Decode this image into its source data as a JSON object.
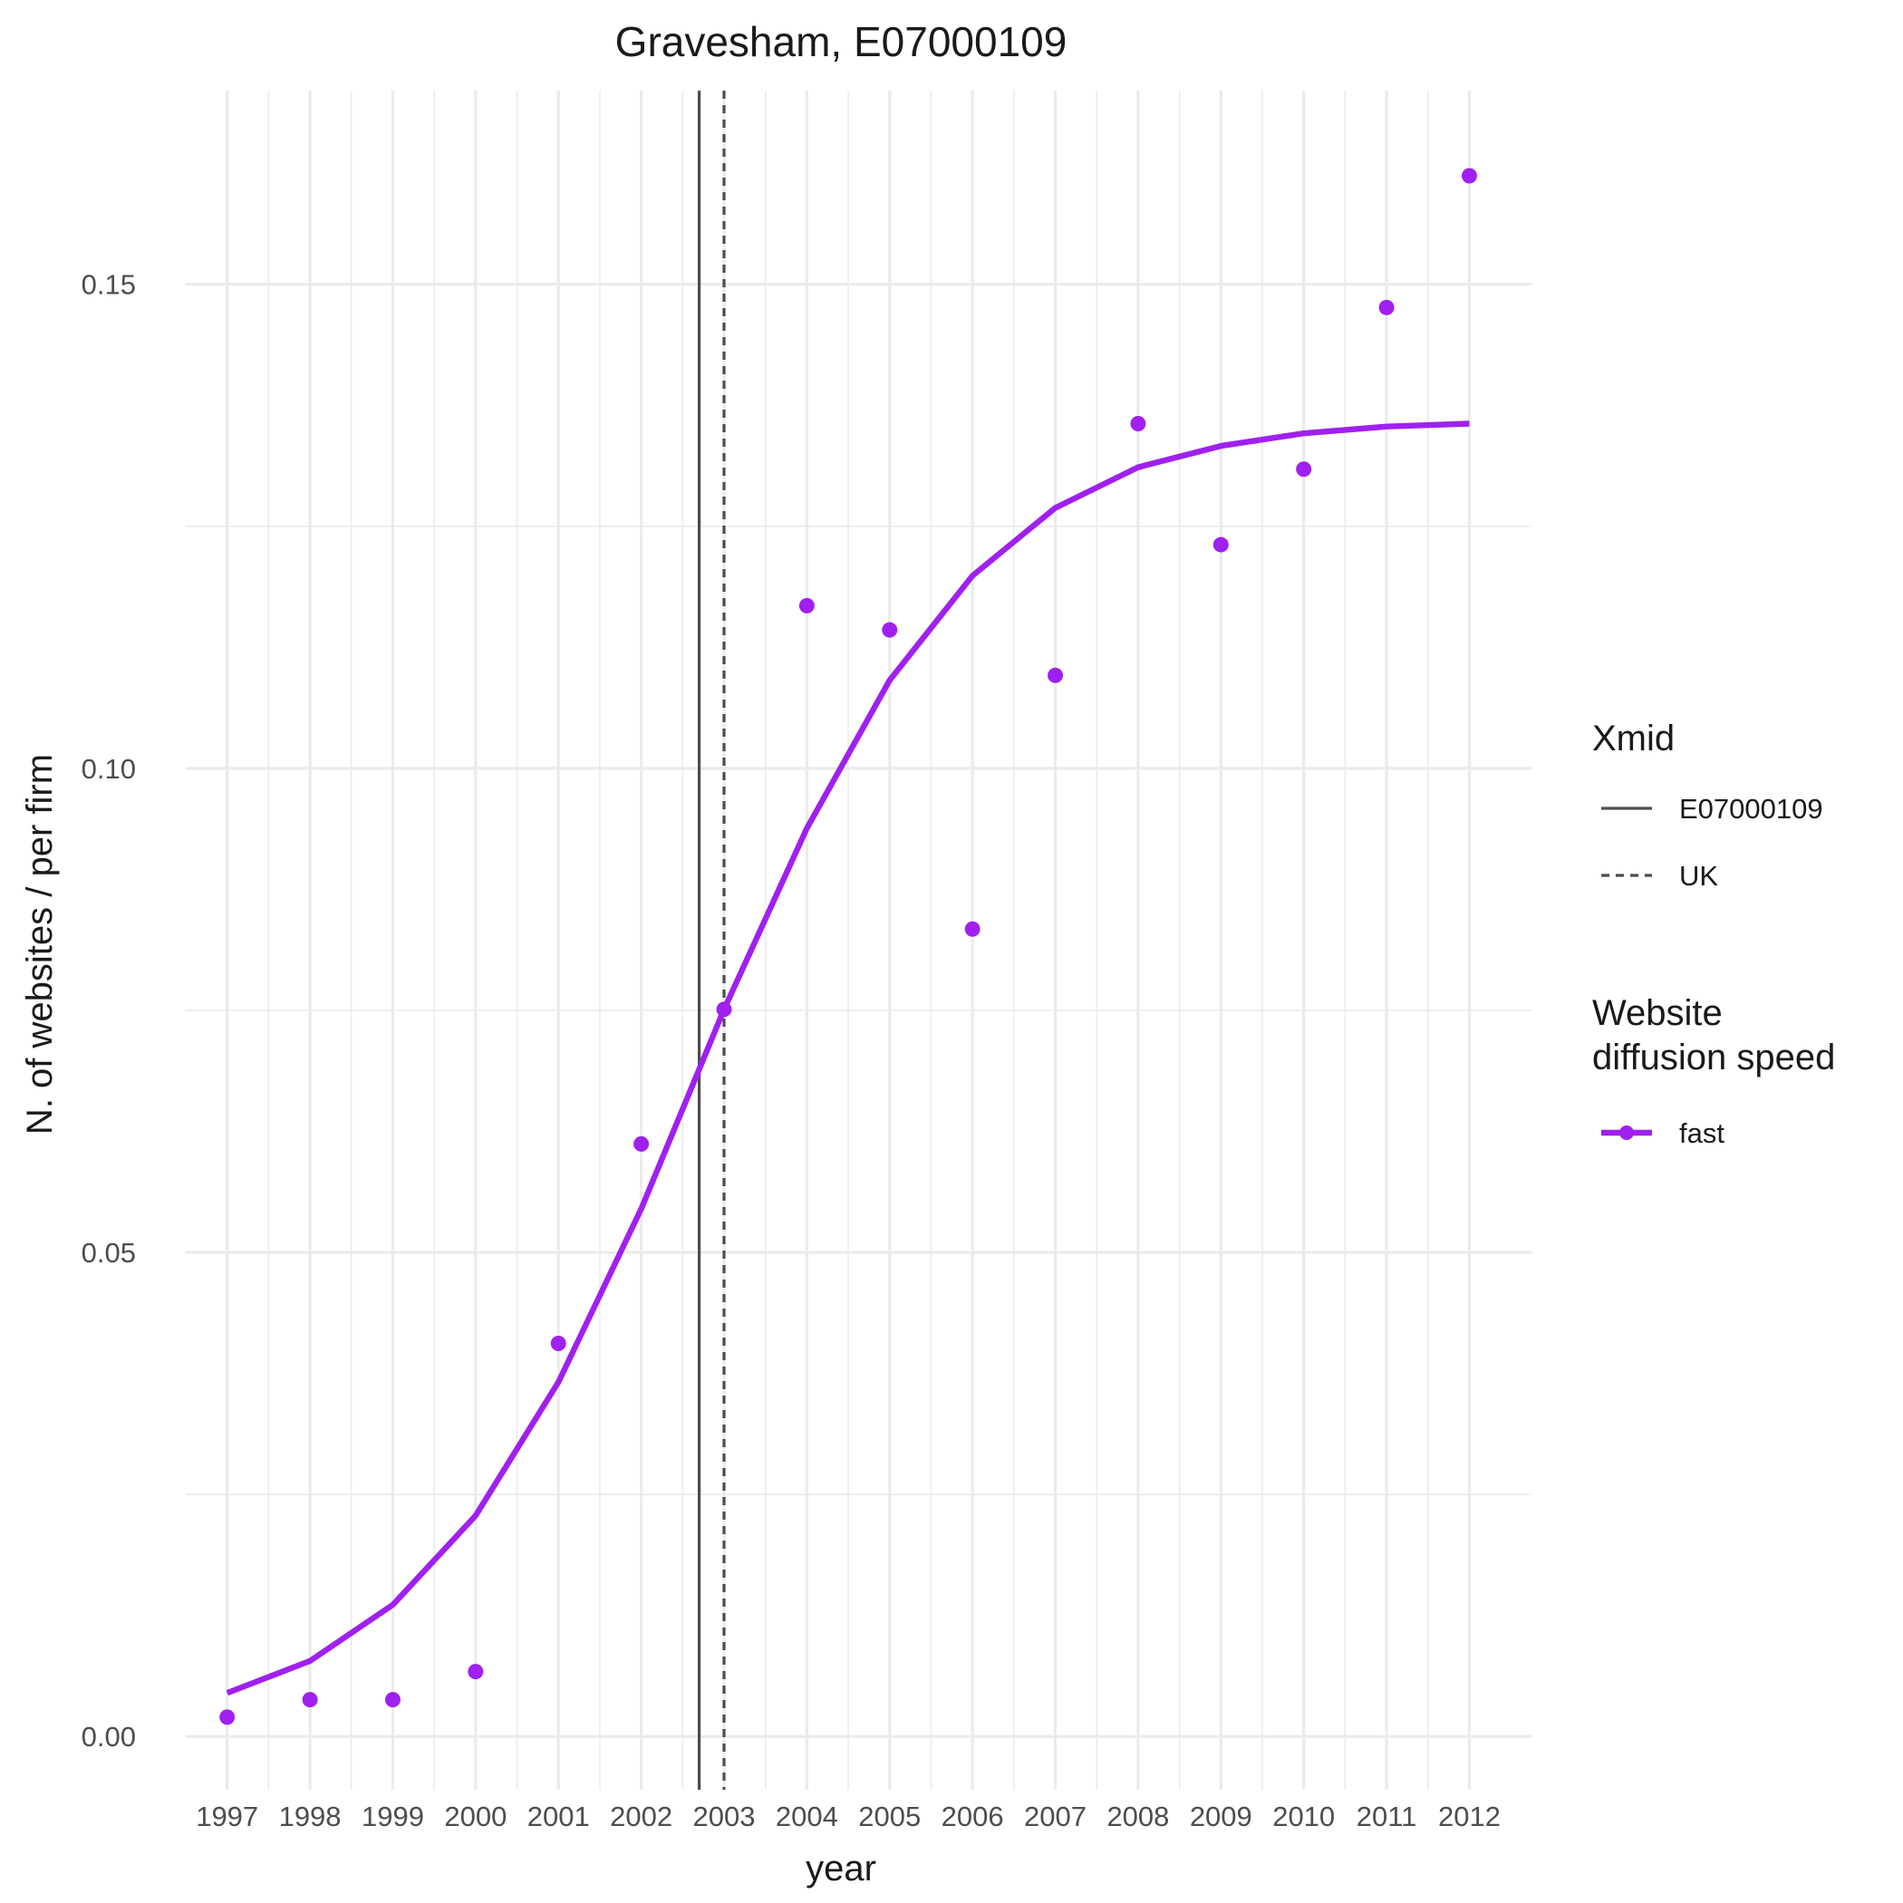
{
  "chart_data": {
    "type": "line",
    "title": "Gravesham, E07000109",
    "xlabel": "year",
    "ylabel": "N. of websites / per firm",
    "x": [
      1997,
      1998,
      1999,
      2000,
      2001,
      2002,
      2003,
      2004,
      2005,
      2006,
      2007,
      2008,
      2009,
      2010,
      2011,
      2012
    ],
    "x_tick_labels": [
      "1997",
      "1998",
      "1999",
      "2000",
      "2001",
      "2002",
      "2003",
      "2004",
      "2005",
      "2006",
      "2007",
      "2008",
      "2009",
      "2010",
      "2011",
      "2012"
    ],
    "y_ticks": [
      0.0,
      0.05,
      0.1,
      0.15
    ],
    "y_tick_labels": [
      "0.00",
      "0.05",
      "0.10",
      "0.15"
    ],
    "xlim": [
      1996.5,
      2012.75
    ],
    "ylim": [
      -0.0055,
      0.17
    ],
    "grid": true,
    "series": [
      {
        "name": "fast",
        "color": "#a020f0",
        "points": [
          0.002,
          0.0038,
          0.0038,
          0.0067,
          0.0406,
          0.0612,
          0.0751,
          0.1168,
          0.1143,
          0.0834,
          0.1096,
          0.1356,
          0.1231,
          0.1309,
          0.1476,
          0.1612
        ],
        "fit": [
          0.0045,
          0.0078,
          0.0136,
          0.0228,
          0.0366,
          0.0545,
          0.0751,
          0.0938,
          0.1091,
          0.1199,
          0.1269,
          0.1311,
          0.1333,
          0.1346,
          0.1353,
          0.1356
        ]
      }
    ],
    "vlines": [
      {
        "name": "E07000109",
        "x": 2002.7,
        "style": "solid",
        "color": "#4d4d4d"
      },
      {
        "name": "UK",
        "x": 2003.0,
        "style": "dashed",
        "color": "#4d4d4d"
      }
    ],
    "legend": {
      "position": "right",
      "groups": [
        {
          "title": "Xmid",
          "entries": [
            "E07000109",
            "UK"
          ]
        },
        {
          "title_lines": [
            "Website",
            "diffusion speed"
          ],
          "entries": [
            "fast"
          ]
        }
      ]
    }
  }
}
